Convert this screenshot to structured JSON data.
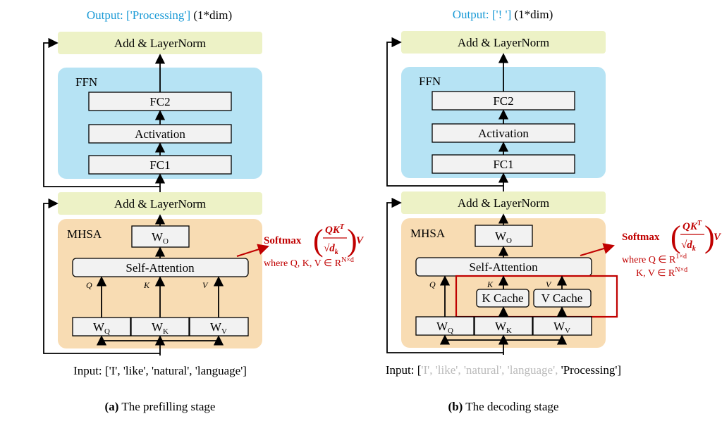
{
  "panels": [
    {
      "output_label": "Output: ['Processing']",
      "output_dim": "(1*dim)",
      "add_norm_top": "Add & LayerNorm",
      "ffn_label": "FFN",
      "fc2": "FC2",
      "activation": "Activation",
      "fc1": "FC1",
      "add_norm_mid": "Add & LayerNorm",
      "mhsa_label": "MHSA",
      "wo": "W",
      "wo_sub": "O",
      "self_attention": "Self-Attention",
      "q": "Q",
      "k": "K",
      "v": "V",
      "w": "W",
      "wq_sub": "Q",
      "wk_sub": "K",
      "wv_sub": "V",
      "input_prefix": "Input: [",
      "input_tokens": "'I', 'like', 'natural', 'language']",
      "formula_softmax": "Softmax",
      "formula_num": "QK",
      "formula_T": "T",
      "formula_den": "√d",
      "formula_k": "k",
      "formula_v": "V",
      "formula_where": "where Q, K, V ∈ R",
      "formula_sup": "N×d",
      "caption_tag": "(a)",
      "caption": " The prefilling stage"
    },
    {
      "output_label": "Output: ['! ']",
      "output_dim": "(1*dim)",
      "add_norm_top": "Add & LayerNorm",
      "ffn_label": "FFN",
      "fc2": "FC2",
      "activation": "Activation",
      "fc1": "FC1",
      "add_norm_mid": "Add & LayerNorm",
      "mhsa_label": "MHSA",
      "wo": "W",
      "wo_sub": "O",
      "self_attention": "Self-Attention",
      "q": "Q",
      "k": "K",
      "v": "V",
      "w": "W",
      "wq_sub": "Q",
      "wk_sub": "K",
      "wv_sub": "V",
      "k_cache": "K Cache",
      "v_cache": "V Cache",
      "input_prefix": "Input: [",
      "input_old": "'I', 'like', 'natural', 'language', ",
      "input_new": "'Processing']",
      "formula_softmax": "Softmax",
      "formula_num": "QK",
      "formula_T": "T",
      "formula_den": "√d",
      "formula_k": "k",
      "formula_v": "V",
      "formula_where": "where Q ∈ R",
      "formula_sup": "1×d",
      "formula_where2": "K, V ∈ R",
      "formula_sup2": "N×d",
      "caption_tag": "(b)",
      "caption": " The decoding stage"
    }
  ],
  "colors": {
    "output": "#1a9ad6",
    "formula": "#c00000",
    "ffn": "#b6e3f4",
    "mhsa": "#f8dcb3",
    "layernorm": "#edf2c6"
  }
}
